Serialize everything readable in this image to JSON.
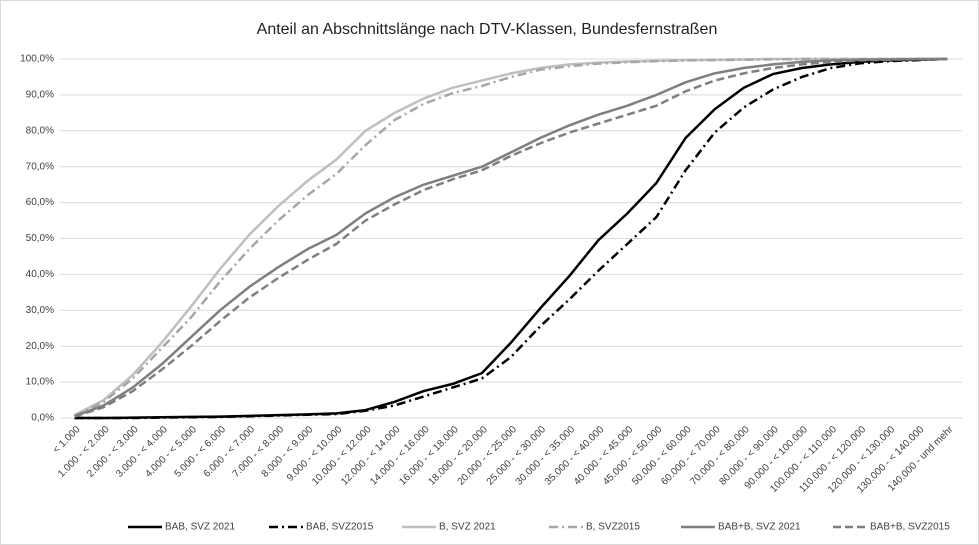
{
  "chart_data": {
    "type": "line",
    "title": "Anteil an Abschnittslänge nach DTV-Klassen, Bundesfernstraßen",
    "categories": [
      "< 1.000",
      "1.000 - < 2.000",
      "2.000 - < 3.000",
      "3.000 - < 4.000",
      "4.000 - < 5.000",
      "5.000 - < 6.000",
      "6.000 - < 7.000",
      "7.000 - < 8.000",
      "8.000 - < 9.000",
      "9.000 - < 10.000",
      "10.000 - < 12.000",
      "12.000 - < 14.000",
      "14.000 - < 16.000",
      "16.000 - < 18.000",
      "18.000 - < 20.000",
      "20.000 - < 25.000",
      "25.000 - < 30.000",
      "30.000 - < 35.000",
      "35.000 - < 40.000",
      "40.000 - < 45.000",
      "45.000 - < 50.000",
      "50.000 - < 60.000",
      "60.000 - < 70.000",
      "70.000 - < 80.000",
      "80.000 - < 90.000",
      "90.000 - < 100.000",
      "100.000 - < 110.000",
      "110.000 - < 120.000",
      "120.000 - < 130.000",
      "130.000 - < 140.000",
      "140.000 - und mehr"
    ],
    "series": [
      {
        "name": "BAB, SVZ 2021",
        "color": "#000000",
        "dash": "solid",
        "values": [
          0,
          0,
          0.1,
          0.2,
          0.3,
          0.4,
          0.6,
          0.8,
          1.0,
          1.3,
          2.2,
          4.5,
          7.5,
          9.5,
          12.5,
          21,
          30.5,
          39.5,
          49.5,
          57,
          65.5,
          78,
          86,
          92,
          95.8,
          97.5,
          98.5,
          99.2,
          99.6,
          99.8,
          100
        ]
      },
      {
        "name": "BAB, SVZ2015",
        "color": "#000000",
        "dash": "dashdot",
        "values": [
          0,
          0,
          0,
          0.1,
          0.2,
          0.3,
          0.5,
          0.7,
          0.9,
          1.1,
          2,
          3.5,
          6,
          8.5,
          11,
          17,
          25.5,
          33,
          41,
          48.5,
          56,
          69,
          79.5,
          86.5,
          91.5,
          95,
          97.5,
          98.8,
          99.4,
          99.7,
          100
        ]
      },
      {
        "name": "B, SVZ 2021",
        "color": "#bfbfbf",
        "dash": "solid",
        "values": [
          0.8,
          5,
          12,
          21,
          31,
          41.5,
          51,
          59,
          66,
          72,
          80,
          85,
          89,
          92,
          94,
          96,
          97.5,
          98.5,
          99,
          99.3,
          99.5,
          99.7,
          99.8,
          99.9,
          100,
          100,
          100,
          100,
          100,
          100,
          100
        ]
      },
      {
        "name": "B, SVZ2015",
        "color": "#a6a6a6",
        "dash": "dashdot",
        "values": [
          0.6,
          4.5,
          11,
          19.5,
          28,
          38,
          47,
          55,
          62,
          68,
          76,
          83,
          87.5,
          90.5,
          92.5,
          95,
          97,
          98,
          98.7,
          99.1,
          99.4,
          99.6,
          99.7,
          99.8,
          99.9,
          100,
          100,
          100,
          100,
          100,
          100
        ]
      },
      {
        "name": "BAB+B, SVZ 2021",
        "color": "#7f7f7f",
        "dash": "solid",
        "values": [
          0.5,
          3.5,
          8.5,
          15,
          22.5,
          30,
          36.5,
          42,
          47,
          51,
          57,
          61.5,
          65,
          67.5,
          70,
          74,
          78,
          81.5,
          84.5,
          87,
          90,
          93.5,
          96,
          97.5,
          98.5,
          99.2,
          99.6,
          99.8,
          99.9,
          100,
          100
        ]
      },
      {
        "name": "BAB+B, SVZ2015",
        "color": "#7f7f7f",
        "dash": "dash",
        "values": [
          0.4,
          3,
          7.5,
          13.5,
          20,
          27,
          33.5,
          39,
          44,
          48.5,
          55,
          59.5,
          63.5,
          66.5,
          69,
          73,
          76.5,
          79.5,
          82,
          84.5,
          87,
          91,
          94,
          96,
          97.5,
          98.5,
          99.2,
          99.6,
          99.8,
          99.9,
          100
        ]
      }
    ],
    "ylim": [
      0,
      100
    ],
    "yticks": [
      {
        "value": 0,
        "label": "0,0%"
      },
      {
        "value": 10,
        "label": "10,0%"
      },
      {
        "value": 20,
        "label": "20,0%"
      },
      {
        "value": 30,
        "label": "30,0%"
      },
      {
        "value": 40,
        "label": "40,0%"
      },
      {
        "value": 50,
        "label": "50,0%"
      },
      {
        "value": 60,
        "label": "60,0%"
      },
      {
        "value": 70,
        "label": "70,0%"
      },
      {
        "value": 80,
        "label": "80,0%"
      },
      {
        "value": 90,
        "label": "90,0%"
      },
      {
        "value": 100,
        "label": "100,0%"
      }
    ],
    "grid": true,
    "legend": "bottom"
  }
}
